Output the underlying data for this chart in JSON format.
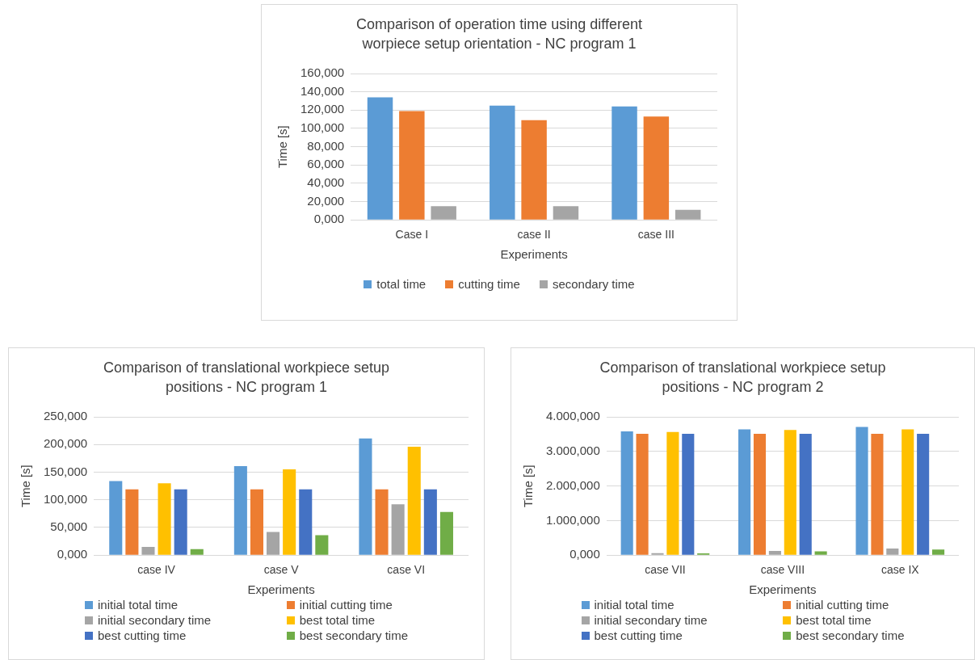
{
  "chart_data": [
    {
      "type": "bar",
      "title": "Comparison of operation time using different worpiece setup orientation - NC program 1",
      "xlabel": "Experiments",
      "ylabel": "Time [s]",
      "categories": [
        "Case I",
        "case II",
        "case III"
      ],
      "series": [
        {
          "name": "total time",
          "color": "#5b9bd5",
          "values": [
            134,
            125,
            124
          ]
        },
        {
          "name": "cutting time",
          "color": "#ed7d31",
          "values": [
            119,
            109,
            113
          ]
        },
        {
          "name": "secondary time",
          "color": "#a5a5a5",
          "values": [
            15,
            15,
            11
          ]
        }
      ],
      "ylim": [
        0,
        160
      ],
      "yticks": [
        {
          "value": 0,
          "label": "0,000"
        },
        {
          "value": 20,
          "label": "20,000"
        },
        {
          "value": 40,
          "label": "40,000"
        },
        {
          "value": 60,
          "label": "60,000"
        },
        {
          "value": 80,
          "label": "80,000"
        },
        {
          "value": 100,
          "label": "100,000"
        },
        {
          "value": 120,
          "label": "120,000"
        },
        {
          "value": 140,
          "label": "140,000"
        },
        {
          "value": 160,
          "label": "160,000"
        }
      ],
      "grid": "y",
      "legend": "bottom"
    },
    {
      "type": "bar",
      "title": "Comparison of translational workpiece setup positions - NC program 1",
      "xlabel": "Experiments",
      "ylabel": "Time [s]",
      "categories": [
        "case IV",
        "case V",
        "case VI"
      ],
      "series": [
        {
          "name": "initial total time",
          "color": "#5b9bd5",
          "values": [
            134,
            161,
            211
          ]
        },
        {
          "name": "initial cutting time",
          "color": "#ed7d31",
          "values": [
            119,
            119,
            119
          ]
        },
        {
          "name": "initial secondary time",
          "color": "#a5a5a5",
          "values": [
            15,
            42,
            92
          ]
        },
        {
          "name": "best total time",
          "color": "#ffc000",
          "values": [
            130,
            155,
            196
          ]
        },
        {
          "name": "best cutting time",
          "color": "#4472c4",
          "values": [
            119,
            119,
            119
          ]
        },
        {
          "name": "best secondary time",
          "color": "#70ad47",
          "values": [
            11,
            36,
            78
          ]
        }
      ],
      "ylim": [
        0,
        250
      ],
      "yticks": [
        {
          "value": 0,
          "label": "0,000"
        },
        {
          "value": 50,
          "label": "50,000"
        },
        {
          "value": 100,
          "label": "100,000"
        },
        {
          "value": 150,
          "label": "150,000"
        },
        {
          "value": 200,
          "label": "200,000"
        },
        {
          "value": 250,
          "label": "250,000"
        }
      ],
      "grid": "y",
      "legend": "bottom"
    },
    {
      "type": "bar",
      "title": "Comparison of translational workpiece setup positions - NC program 2",
      "xlabel": "Experiments",
      "ylabel": "Time [s]",
      "categories": [
        "case VII",
        "case VIII",
        "case IX"
      ],
      "series": [
        {
          "name": "initial total time",
          "color": "#5b9bd5",
          "values": [
            3580,
            3640,
            3710
          ]
        },
        {
          "name": "initial cutting time",
          "color": "#ed7d31",
          "values": [
            3510,
            3510,
            3510
          ]
        },
        {
          "name": "initial secondary time",
          "color": "#a5a5a5",
          "values": [
            60,
            120,
            190
          ]
        },
        {
          "name": "best total time",
          "color": "#ffc000",
          "values": [
            3560,
            3620,
            3640
          ]
        },
        {
          "name": "best cutting time",
          "color": "#4472c4",
          "values": [
            3510,
            3510,
            3510
          ]
        },
        {
          "name": "best secondary time",
          "color": "#70ad47",
          "values": [
            50,
            110,
            160
          ]
        }
      ],
      "ylim": [
        0,
        4000
      ],
      "yticks": [
        {
          "value": 0,
          "label": "0,000"
        },
        {
          "value": 1000,
          "label": "1.000,000"
        },
        {
          "value": 2000,
          "label": "2.000,000"
        },
        {
          "value": 3000,
          "label": "3.000,000"
        },
        {
          "value": 4000,
          "label": "4.000,000"
        }
      ],
      "grid": "y",
      "legend": "bottom"
    }
  ]
}
